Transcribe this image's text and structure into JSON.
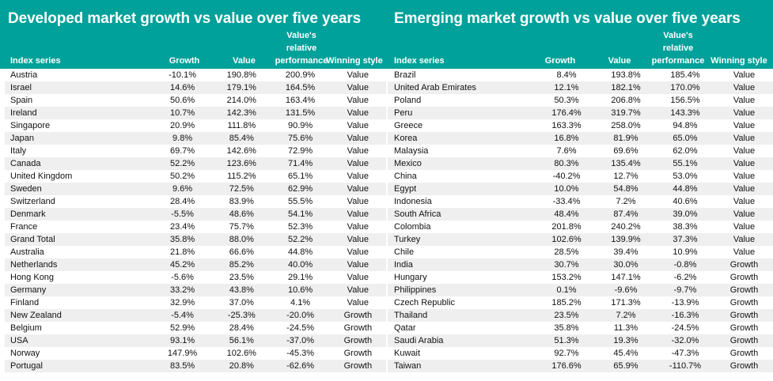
{
  "colors": {
    "header_bg": "#00A19A",
    "header_text": "#ffffff",
    "row_alt": "#EFEFEF"
  },
  "developed": {
    "title": "Developed market growth vs value over five years",
    "columns": {
      "index_series": "Index series",
      "growth": "Growth",
      "value": "Value",
      "relative_line1": "Value's",
      "relative_line2": "relative",
      "relative_line3": "performance",
      "winning_style": "Winning style"
    },
    "rows": [
      {
        "name": "Austria",
        "growth": "-10.1%",
        "value": "190.8%",
        "relative": "200.9%",
        "style": "Value"
      },
      {
        "name": "Israel",
        "growth": "14.6%",
        "value": "179.1%",
        "relative": "164.5%",
        "style": "Value"
      },
      {
        "name": "Spain",
        "growth": "50.6%",
        "value": "214.0%",
        "relative": "163.4%",
        "style": "Value"
      },
      {
        "name": "Ireland",
        "growth": "10.7%",
        "value": "142.3%",
        "relative": "131.5%",
        "style": "Value"
      },
      {
        "name": "Singapore",
        "growth": "20.9%",
        "value": "111.8%",
        "relative": "90.9%",
        "style": "Value"
      },
      {
        "name": "Japan",
        "growth": "9.8%",
        "value": "85.4%",
        "relative": "75.6%",
        "style": "Value"
      },
      {
        "name": "Italy",
        "growth": "69.7%",
        "value": "142.6%",
        "relative": "72.9%",
        "style": "Value"
      },
      {
        "name": "Canada",
        "growth": "52.2%",
        "value": "123.6%",
        "relative": "71.4%",
        "style": "Value"
      },
      {
        "name": "United Kingdom",
        "growth": "50.2%",
        "value": "115.2%",
        "relative": "65.1%",
        "style": "Value"
      },
      {
        "name": "Sweden",
        "growth": "9.6%",
        "value": "72.5%",
        "relative": "62.9%",
        "style": "Value"
      },
      {
        "name": "Switzerland",
        "growth": "28.4%",
        "value": "83.9%",
        "relative": "55.5%",
        "style": "Value"
      },
      {
        "name": "Denmark",
        "growth": "-5.5%",
        "value": "48.6%",
        "relative": "54.1%",
        "style": "Value"
      },
      {
        "name": "France",
        "growth": "23.4%",
        "value": "75.7%",
        "relative": "52.3%",
        "style": "Value"
      },
      {
        "name": "Grand Total",
        "growth": "35.8%",
        "value": "88.0%",
        "relative": "52.2%",
        "style": "Value"
      },
      {
        "name": "Australia",
        "growth": "21.8%",
        "value": "66.6%",
        "relative": "44.8%",
        "style": "Value"
      },
      {
        "name": "Netherlands",
        "growth": "45.2%",
        "value": "85.2%",
        "relative": "40.0%",
        "style": "Value"
      },
      {
        "name": "Hong Kong",
        "growth": "-5.6%",
        "value": "23.5%",
        "relative": "29.1%",
        "style": "Value"
      },
      {
        "name": "Germany",
        "growth": "33.2%",
        "value": "43.8%",
        "relative": "10.6%",
        "style": "Value"
      },
      {
        "name": "Finland",
        "growth": "32.9%",
        "value": "37.0%",
        "relative": "4.1%",
        "style": "Value"
      },
      {
        "name": "New Zealand",
        "growth": "-5.4%",
        "value": "-25.3%",
        "relative": "-20.0%",
        "style": "Growth"
      },
      {
        "name": "Belgium",
        "growth": "52.9%",
        "value": "28.4%",
        "relative": "-24.5%",
        "style": "Growth"
      },
      {
        "name": "USA",
        "growth": "93.1%",
        "value": "56.1%",
        "relative": "-37.0%",
        "style": "Growth"
      },
      {
        "name": "Norway",
        "growth": "147.9%",
        "value": "102.6%",
        "relative": "-45.3%",
        "style": "Growth"
      },
      {
        "name": "Portugal",
        "growth": "83.5%",
        "value": "20.8%",
        "relative": "-62.6%",
        "style": "Growth"
      }
    ]
  },
  "emerging": {
    "title": "Emerging market growth vs value over five years",
    "columns": {
      "index_series": "Index series",
      "growth": "Growth",
      "value": "Value",
      "relative_line1": "Value's",
      "relative_line2": "relative",
      "relative_line3": "performance",
      "winning_style": "Winning style"
    },
    "rows": [
      {
        "name": "Brazil",
        "growth": "8.4%",
        "value": "193.8%",
        "relative": "185.4%",
        "style": "Value"
      },
      {
        "name": "United Arab Emirates",
        "growth": "12.1%",
        "value": "182.1%",
        "relative": "170.0%",
        "style": "Value"
      },
      {
        "name": "Poland",
        "growth": "50.3%",
        "value": "206.8%",
        "relative": "156.5%",
        "style": "Value"
      },
      {
        "name": "Peru",
        "growth": "176.4%",
        "value": "319.7%",
        "relative": "143.3%",
        "style": "Value"
      },
      {
        "name": "Greece",
        "growth": "163.3%",
        "value": "258.0%",
        "relative": "94.8%",
        "style": "Value"
      },
      {
        "name": "Korea",
        "growth": "16.8%",
        "value": "81.9%",
        "relative": "65.0%",
        "style": "Value"
      },
      {
        "name": "Malaysia",
        "growth": "7.6%",
        "value": "69.6%",
        "relative": "62.0%",
        "style": "Value"
      },
      {
        "name": "Mexico",
        "growth": "80.3%",
        "value": "135.4%",
        "relative": "55.1%",
        "style": "Value"
      },
      {
        "name": "China",
        "growth": "-40.2%",
        "value": "12.7%",
        "relative": "53.0%",
        "style": "Value"
      },
      {
        "name": "Egypt",
        "growth": "10.0%",
        "value": "54.8%",
        "relative": "44.8%",
        "style": "Value"
      },
      {
        "name": "Indonesia",
        "growth": "-33.4%",
        "value": "7.2%",
        "relative": "40.6%",
        "style": "Value"
      },
      {
        "name": "South Africa",
        "growth": "48.4%",
        "value": "87.4%",
        "relative": "39.0%",
        "style": "Value"
      },
      {
        "name": "Colombia",
        "growth": "201.8%",
        "value": "240.2%",
        "relative": "38.3%",
        "style": "Value"
      },
      {
        "name": "Turkey",
        "growth": "102.6%",
        "value": "139.9%",
        "relative": "37.3%",
        "style": "Value"
      },
      {
        "name": "Chile",
        "growth": "28.5%",
        "value": "39.4%",
        "relative": "10.9%",
        "style": "Value"
      },
      {
        "name": "India",
        "growth": "30.7%",
        "value": "30.0%",
        "relative": "-0.8%",
        "style": "Growth"
      },
      {
        "name": "Hungary",
        "growth": "153.2%",
        "value": "147.1%",
        "relative": "-6.2%",
        "style": "Growth"
      },
      {
        "name": "Philippines",
        "growth": "0.1%",
        "value": "-9.6%",
        "relative": "-9.7%",
        "style": "Growth"
      },
      {
        "name": "Czech Republic",
        "growth": "185.2%",
        "value": "171.3%",
        "relative": "-13.9%",
        "style": "Growth"
      },
      {
        "name": "Thailand",
        "growth": "23.5%",
        "value": "7.2%",
        "relative": "-16.3%",
        "style": "Growth"
      },
      {
        "name": "Qatar",
        "growth": "35.8%",
        "value": "11.3%",
        "relative": "-24.5%",
        "style": "Growth"
      },
      {
        "name": "Saudi Arabia",
        "growth": "51.3%",
        "value": "19.3%",
        "relative": "-32.0%",
        "style": "Growth"
      },
      {
        "name": "Kuwait",
        "growth": "92.7%",
        "value": "45.4%",
        "relative": "-47.3%",
        "style": "Growth"
      },
      {
        "name": "Taiwan",
        "growth": "176.6%",
        "value": "65.9%",
        "relative": "-110.7%",
        "style": "Growth"
      }
    ]
  }
}
